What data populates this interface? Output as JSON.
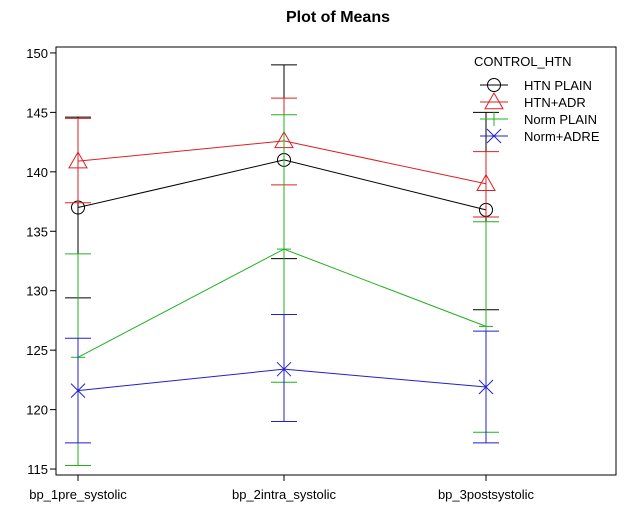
{
  "chart_data": {
    "type": "line",
    "title": "Plot of Means",
    "xlabel": "",
    "ylabel": "",
    "categories": [
      "bp_1pre_systolic",
      "bp_2intra_systolic",
      "bp_3postsystolic"
    ],
    "ylim": [
      114.5,
      150.5
    ],
    "yticks": [
      115,
      120,
      125,
      130,
      135,
      140,
      145,
      150
    ],
    "grid": false,
    "legend": {
      "title": "CONTROL_HTN",
      "position": "top-right"
    },
    "series": [
      {
        "name": "HTN PLAIN",
        "color": "#000000",
        "marker": "circle",
        "values": [
          137.0,
          141.0,
          136.8
        ],
        "lower": [
          129.4,
          132.7,
          128.4
        ],
        "upper": [
          144.6,
          149.0,
          145.0
        ]
      },
      {
        "name": "HTN+ADR",
        "color": "#DF2020",
        "marker": "triangle",
        "values": [
          140.9,
          142.6,
          139.0
        ],
        "lower": [
          137.4,
          138.9,
          136.2
        ],
        "upper": [
          144.5,
          146.2,
          141.7
        ]
      },
      {
        "name": "Norm PLAIN",
        "color": "#20B020",
        "marker": "plus",
        "values": [
          124.4,
          133.5,
          127.0
        ],
        "lower": [
          115.3,
          122.3,
          118.1
        ],
        "upper": [
          133.1,
          144.8,
          135.8
        ]
      },
      {
        "name": "Norm+ADRE",
        "color": "#2020CC",
        "marker": "x",
        "values": [
          121.6,
          123.4,
          121.9
        ],
        "lower": [
          117.2,
          119.0,
          117.2
        ],
        "upper": [
          126.0,
          128.0,
          126.6
        ]
      }
    ]
  }
}
